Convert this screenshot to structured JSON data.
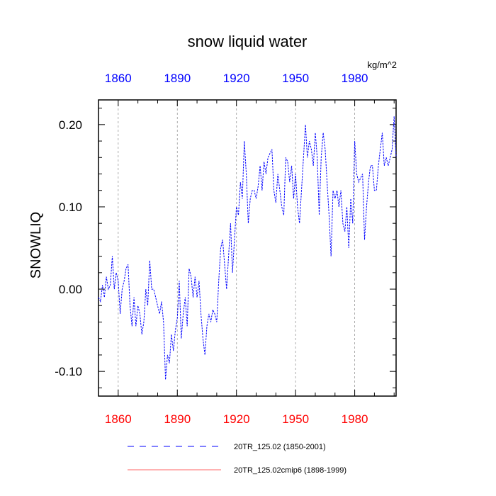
{
  "chart_data": {
    "type": "line",
    "title": "snow liquid water",
    "units_label": "kg/m^2",
    "ylabel": "SNOWLIQ",
    "xlabel": "",
    "xlim": [
      1850,
      2001
    ],
    "ylim": [
      -0.13,
      0.23
    ],
    "x_ticks": [
      1860,
      1890,
      1920,
      1950,
      1980
    ],
    "x_tick_labels": [
      "1860",
      "1890",
      "1920",
      "1950",
      "1980"
    ],
    "y_ticks": [
      0.2,
      0.1,
      0.0,
      -0.1
    ],
    "y_tick_labels": [
      "0.20",
      "0.10",
      "0.00",
      "-0.10"
    ],
    "grid": "vertical dashed at major x ticks",
    "colors": {
      "series1": "#0000ff",
      "series2": "#ff0000",
      "top_ticks": "#0000ff",
      "bottom_ticks": "#ff0000"
    },
    "series": [
      {
        "name": "20TR_125.02 (1850-2001)",
        "style": "dashed",
        "color": "#0000ff",
        "x": [
          1850,
          1851,
          1852,
          1853,
          1854,
          1855,
          1856,
          1857,
          1858,
          1859,
          1860,
          1861,
          1862,
          1863,
          1864,
          1865,
          1866,
          1867,
          1868,
          1869,
          1870,
          1871,
          1872,
          1873,
          1874,
          1875,
          1876,
          1877,
          1878,
          1879,
          1880,
          1881,
          1882,
          1883,
          1884,
          1885,
          1886,
          1887,
          1888,
          1889,
          1890,
          1891,
          1892,
          1893,
          1894,
          1895,
          1896,
          1897,
          1898,
          1899,
          1900,
          1901,
          1902,
          1903,
          1904,
          1905,
          1906,
          1907,
          1908,
          1909,
          1910,
          1911,
          1912,
          1913,
          1914,
          1915,
          1916,
          1917,
          1918,
          1919,
          1920,
          1921,
          1922,
          1923,
          1924,
          1925,
          1926,
          1927,
          1928,
          1929,
          1930,
          1931,
          1932,
          1933,
          1934,
          1935,
          1936,
          1937,
          1938,
          1939,
          1940,
          1941,
          1942,
          1943,
          1944,
          1945,
          1946,
          1947,
          1948,
          1949,
          1950,
          1951,
          1952,
          1953,
          1954,
          1955,
          1956,
          1957,
          1958,
          1959,
          1960,
          1961,
          1962,
          1963,
          1964,
          1965,
          1966,
          1967,
          1968,
          1969,
          1970,
          1971,
          1972,
          1973,
          1974,
          1975,
          1976,
          1977,
          1978,
          1979,
          1980,
          1981,
          1982,
          1983,
          1984,
          1985,
          1986,
          1987,
          1988,
          1989,
          1990,
          1991,
          1992,
          1993,
          1994,
          1995,
          1996,
          1997,
          1998,
          1999,
          2000,
          2001
        ],
        "values": [
          -0.01,
          -0.015,
          0.005,
          -0.01,
          0.015,
          0.0,
          0.005,
          0.04,
          0.0,
          0.02,
          0.01,
          -0.03,
          0.0,
          0.01,
          0.025,
          0.03,
          -0.02,
          -0.045,
          -0.01,
          -0.045,
          -0.02,
          -0.03,
          -0.055,
          -0.04,
          0.0,
          -0.02,
          0.035,
          0.0,
          0.0,
          -0.01,
          -0.02,
          -0.03,
          -0.015,
          -0.04,
          -0.11,
          -0.08,
          -0.09,
          -0.055,
          -0.075,
          -0.05,
          -0.035,
          0.01,
          -0.06,
          -0.03,
          -0.01,
          -0.045,
          0.025,
          0.015,
          -0.01,
          0.015,
          -0.01,
          0.01,
          -0.03,
          -0.06,
          -0.08,
          -0.045,
          -0.03,
          -0.04,
          -0.025,
          -0.03,
          -0.04,
          0.01,
          0.05,
          0.06,
          0.03,
          0.0,
          0.04,
          0.08,
          0.02,
          0.06,
          0.1,
          0.09,
          0.13,
          0.11,
          0.18,
          0.14,
          0.08,
          0.11,
          0.12,
          0.12,
          0.11,
          0.125,
          0.15,
          0.12,
          0.155,
          0.14,
          0.16,
          0.165,
          0.17,
          0.12,
          0.105,
          0.14,
          0.12,
          0.1,
          0.09,
          0.16,
          0.155,
          0.13,
          0.15,
          0.11,
          0.14,
          0.1,
          0.08,
          0.12,
          0.16,
          0.2,
          0.16,
          0.18,
          0.17,
          0.15,
          0.19,
          0.16,
          0.09,
          0.16,
          0.19,
          0.17,
          0.13,
          0.09,
          0.04,
          0.12,
          0.11,
          0.12,
          0.1,
          0.12,
          0.08,
          0.07,
          0.1,
          0.05,
          0.11,
          0.08,
          0.18,
          0.14,
          0.13,
          0.135,
          0.14,
          0.06,
          0.1,
          0.13,
          0.15,
          0.15,
          0.12,
          0.12,
          0.15,
          0.17,
          0.19,
          0.15,
          0.16,
          0.15,
          0.16,
          0.17,
          0.21,
          0.16
        ]
      },
      {
        "name": "20TR_125.02cmip6 (1898-1999)",
        "style": "solid",
        "color": "#ff0000",
        "x": [],
        "values": []
      }
    ]
  }
}
